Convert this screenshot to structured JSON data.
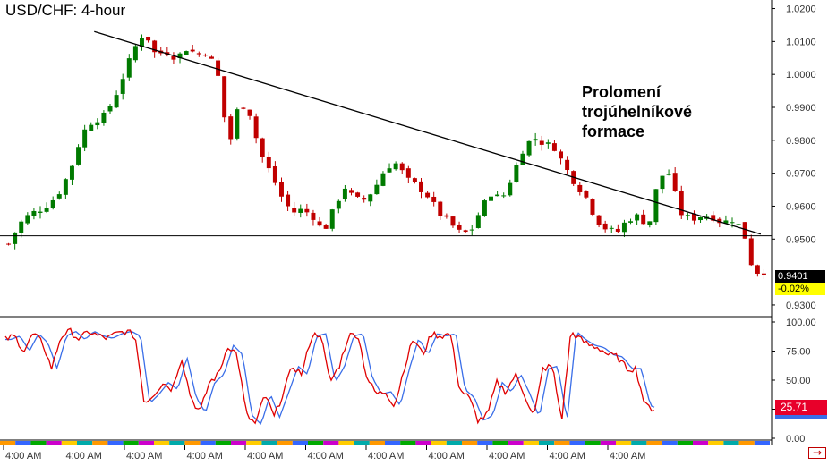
{
  "chart_data": [
    {
      "type": "candlestick",
      "title": "USD/CHF: 4-hour",
      "annotation": [
        "Prolomení",
        "trojúhelníkové",
        "formace"
      ],
      "ylim": [
        0.927,
        1.0215
      ],
      "y_ticks": [
        "1.0200",
        "1.0100",
        "1.0000",
        "0.9900",
        "0.9800",
        "0.9700",
        "0.9600",
        "0.9500",
        "0.9300"
      ],
      "y_tick_values": [
        1.02,
        1.01,
        1.0,
        0.99,
        0.98,
        0.97,
        0.96,
        0.95,
        0.93
      ],
      "x_tick_labels": [
        "4:00 AM",
        "4:00 AM",
        "4:00 AM",
        "4:00 AM",
        "4:00 AM",
        "4:00 AM",
        "4:00 AM",
        "4:00 AM",
        "4:00 AM",
        "4:00 AM",
        "4:00 AM"
      ],
      "close_path": [
        0.9485,
        0.9545,
        0.9575,
        0.959,
        0.961,
        0.965,
        0.972,
        0.982,
        0.986,
        0.987,
        0.992,
        1.0,
        1.008,
        1.013,
        1.006,
        1.007,
        1.005,
        1.008,
        1.006,
        1.007,
        0.999,
        0.978,
        0.992,
        0.988,
        0.976,
        0.97,
        0.963,
        0.958,
        0.959,
        0.957,
        0.952,
        0.959,
        0.966,
        0.962,
        0.962,
        0.966,
        0.972,
        0.973,
        0.968,
        0.966,
        0.963,
        0.958,
        0.955,
        0.952,
        0.952,
        0.959,
        0.964,
        0.962,
        0.969,
        0.977,
        0.981,
        0.979,
        0.978,
        0.972,
        0.967,
        0.963,
        0.956,
        0.953,
        0.952,
        0.956,
        0.957,
        0.954,
        0.969,
        0.97,
        0.958,
        0.956,
        0.957,
        0.957,
        0.955,
        0.956,
        0.953,
        0.94,
        0.9401
      ],
      "current_price": "0.9401",
      "current_change": "-0.02%",
      "lines": [
        {
          "kind": "trendline",
          "from_index": 14,
          "from_value": 1.013,
          "to_index": 119,
          "to_value": 0.9515
        },
        {
          "kind": "support",
          "value": 0.951
        }
      ],
      "colors": {
        "up": "#007a00",
        "down": "#c00000",
        "lines": "#000000",
        "badge": "#ffff00"
      }
    },
    {
      "type": "line",
      "name": "stochastic oscillator",
      "ylim": [
        0,
        100
      ],
      "y_ticks": [
        "100.00",
        "75.00",
        "50.00",
        "25.00",
        "0.00"
      ],
      "y_tick_values": [
        100,
        75,
        50,
        25,
        0
      ],
      "k_path": [
        85,
        88,
        75,
        90,
        82,
        60,
        88,
        92,
        85,
        92,
        88,
        86,
        90,
        92,
        88,
        30,
        38,
        48,
        42,
        70,
        35,
        22,
        48,
        55,
        80,
        72,
        20,
        12,
        38,
        18,
        40,
        62,
        55,
        88,
        90,
        48,
        62,
        88,
        90,
        52,
        38,
        40,
        28,
        60,
        86,
        72,
        90,
        88,
        90,
        42,
        35,
        15,
        20,
        48,
        40,
        55,
        38,
        18,
        60,
        62,
        15,
        92,
        85,
        80,
        78,
        72,
        70,
        60,
        60,
        28,
        25
      ],
      "current_value": "25.71",
      "colors": {
        "k": "#e00000",
        "d": "#3a6ee8",
        "badge": "#e8002a"
      }
    }
  ]
}
